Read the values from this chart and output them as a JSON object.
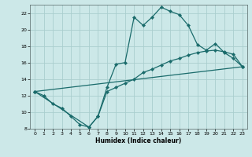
{
  "xlabel": "Humidex (Indice chaleur)",
  "xlim": [
    -0.5,
    23.5
  ],
  "ylim": [
    8,
    23
  ],
  "xticks": [
    0,
    1,
    2,
    3,
    4,
    5,
    6,
    7,
    8,
    9,
    10,
    11,
    12,
    13,
    14,
    15,
    16,
    17,
    18,
    19,
    20,
    21,
    22,
    23
  ],
  "yticks": [
    8,
    10,
    12,
    14,
    16,
    18,
    20,
    22
  ],
  "bg_color": "#cce8e8",
  "grid_color": "#aacece",
  "line_color": "#1a6b6b",
  "line1_x": [
    0,
    1,
    2,
    3,
    4,
    5,
    6,
    7,
    8,
    9,
    10,
    11,
    12,
    13,
    14,
    15,
    16,
    17,
    18,
    19,
    20,
    21,
    22,
    23
  ],
  "line1_y": [
    12.5,
    12.0,
    11.0,
    10.5,
    9.5,
    8.5,
    8.2,
    9.5,
    13.0,
    15.8,
    16.0,
    21.5,
    20.5,
    21.5,
    22.7,
    22.2,
    21.8,
    20.5,
    18.2,
    17.5,
    18.3,
    17.2,
    16.5,
    15.5
  ],
  "line2_x": [
    0,
    6,
    7,
    8,
    9,
    10,
    11,
    12,
    13,
    14,
    15,
    16,
    17,
    18,
    19,
    20,
    21,
    22,
    23
  ],
  "line2_y": [
    12.5,
    8.2,
    9.5,
    12.5,
    13.0,
    13.5,
    14.0,
    14.8,
    15.2,
    15.7,
    16.2,
    16.5,
    16.9,
    17.2,
    17.4,
    17.5,
    17.3,
    17.0,
    15.5
  ],
  "line3_x": [
    0,
    23
  ],
  "line3_y": [
    12.5,
    15.5
  ]
}
